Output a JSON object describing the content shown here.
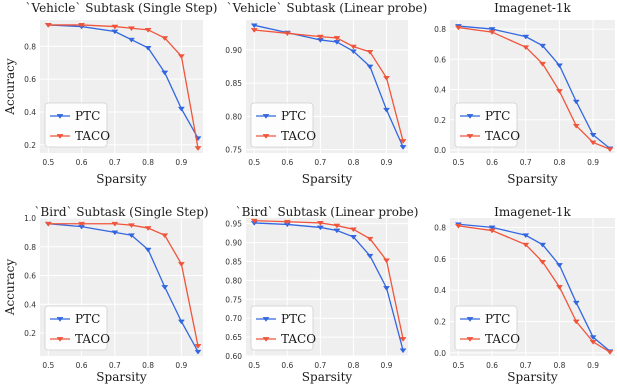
{
  "colors": {
    "PTC": "#3367e0",
    "TACO": "#f0553c",
    "panel_bg": "#efefef",
    "grid": "#ffffff"
  },
  "chart_data": [
    {
      "type": "line",
      "title": "`Vehicle` Subtask (Single Step)",
      "xlabel": "Sparsity",
      "ylabel": "Accuracy",
      "xlim": [
        0.475,
        0.965
      ],
      "ylim": [
        0.15,
        0.96
      ],
      "xticks": [
        0.5,
        0.6,
        0.7,
        0.8,
        0.9
      ],
      "yticks": [
        0.2,
        0.4,
        0.6,
        0.8
      ],
      "x": [
        0.5,
        0.6,
        0.7,
        0.75,
        0.8,
        0.85,
        0.9,
        0.95
      ],
      "series": [
        {
          "name": "PTC",
          "marker": "down-triangle",
          "values": [
            0.93,
            0.92,
            0.89,
            0.84,
            0.79,
            0.64,
            0.42,
            0.24
          ]
        },
        {
          "name": "TACO",
          "marker": "down-triangle",
          "values": [
            0.93,
            0.93,
            0.92,
            0.91,
            0.9,
            0.85,
            0.74,
            0.18
          ]
        }
      ],
      "legend": "bottom-left",
      "grid": true
    },
    {
      "type": "line",
      "title": "`Vehicle` Subtask (Linear probe)",
      "xlabel": "Sparsity",
      "ylabel": "",
      "xlim": [
        0.475,
        0.965
      ],
      "ylim": [
        0.745,
        0.945
      ],
      "xticks": [
        0.5,
        0.6,
        0.7,
        0.8,
        0.9
      ],
      "yticks": [
        0.75,
        0.8,
        0.85,
        0.9
      ],
      "x": [
        0.5,
        0.6,
        0.7,
        0.75,
        0.8,
        0.85,
        0.9,
        0.95
      ],
      "series": [
        {
          "name": "PTC",
          "marker": "down-triangle",
          "values": [
            0.937,
            0.926,
            0.915,
            0.912,
            0.898,
            0.875,
            0.81,
            0.754
          ]
        },
        {
          "name": "TACO",
          "marker": "down-triangle",
          "values": [
            0.93,
            0.925,
            0.92,
            0.918,
            0.905,
            0.897,
            0.858,
            0.763
          ]
        }
      ],
      "legend": "bottom-left",
      "grid": true
    },
    {
      "type": "line",
      "title": "Imagenet-1k",
      "xlabel": "Sparsity",
      "ylabel": "",
      "xlim": [
        0.475,
        0.965
      ],
      "ylim": [
        -0.02,
        0.86
      ],
      "xticks": [
        0.5,
        0.6,
        0.7,
        0.8,
        0.9
      ],
      "yticks": [
        0.0,
        0.2,
        0.4,
        0.6,
        0.8
      ],
      "x": [
        0.5,
        0.6,
        0.7,
        0.75,
        0.8,
        0.85,
        0.9,
        0.95
      ],
      "series": [
        {
          "name": "PTC",
          "marker": "down-triangle",
          "values": [
            0.82,
            0.8,
            0.75,
            0.69,
            0.56,
            0.32,
            0.1,
            0.01
          ]
        },
        {
          "name": "TACO",
          "marker": "down-triangle",
          "values": [
            0.81,
            0.78,
            0.68,
            0.57,
            0.39,
            0.16,
            0.05,
            0.005
          ]
        }
      ],
      "legend": "bottom-left",
      "grid": true
    },
    {
      "type": "line",
      "title": "`Bird` Subtask (Single Step)",
      "xlabel": "Sparsity",
      "ylabel": "Accuracy",
      "xlim": [
        0.475,
        0.965
      ],
      "ylim": [
        0.04,
        1.0
      ],
      "xticks": [
        0.5,
        0.6,
        0.7,
        0.8,
        0.9
      ],
      "yticks": [
        0.2,
        0.4,
        0.6,
        0.8,
        1.0
      ],
      "x": [
        0.5,
        0.6,
        0.7,
        0.75,
        0.8,
        0.85,
        0.9,
        0.95
      ],
      "series": [
        {
          "name": "PTC",
          "marker": "down-triangle",
          "values": [
            0.96,
            0.94,
            0.9,
            0.88,
            0.78,
            0.52,
            0.28,
            0.07
          ]
        },
        {
          "name": "TACO",
          "marker": "down-triangle",
          "values": [
            0.96,
            0.96,
            0.96,
            0.95,
            0.93,
            0.88,
            0.68,
            0.11
          ]
        }
      ],
      "legend": "bottom-left",
      "grid": true
    },
    {
      "type": "line",
      "title": "`Bird` Subtask (Linear probe)",
      "xlabel": "Sparsity",
      "ylabel": "",
      "xlim": [
        0.475,
        0.965
      ],
      "ylim": [
        0.6,
        0.965
      ],
      "xticks": [
        0.5,
        0.6,
        0.7,
        0.8,
        0.9
      ],
      "yticks": [
        0.6,
        0.65,
        0.7,
        0.75,
        0.8,
        0.85,
        0.9,
        0.95
      ],
      "x": [
        0.5,
        0.6,
        0.7,
        0.75,
        0.8,
        0.85,
        0.9,
        0.95
      ],
      "series": [
        {
          "name": "PTC",
          "marker": "down-triangle",
          "values": [
            0.952,
            0.948,
            0.94,
            0.932,
            0.915,
            0.865,
            0.78,
            0.615
          ]
        },
        {
          "name": "TACO",
          "marker": "down-triangle",
          "values": [
            0.958,
            0.955,
            0.952,
            0.945,
            0.935,
            0.91,
            0.853,
            0.645
          ]
        }
      ],
      "legend": "bottom-left",
      "grid": true
    },
    {
      "type": "line",
      "title": "Imagenet-1k",
      "xlabel": "Sparsity",
      "ylabel": "",
      "xlim": [
        0.475,
        0.965
      ],
      "ylim": [
        -0.02,
        0.86
      ],
      "xticks": [
        0.5,
        0.6,
        0.7,
        0.8,
        0.9
      ],
      "yticks": [
        0.0,
        0.2,
        0.4,
        0.6,
        0.8
      ],
      "x": [
        0.5,
        0.6,
        0.7,
        0.75,
        0.8,
        0.85,
        0.9,
        0.95
      ],
      "series": [
        {
          "name": "PTC",
          "marker": "down-triangle",
          "values": [
            0.82,
            0.8,
            0.75,
            0.69,
            0.56,
            0.32,
            0.1,
            0.01
          ]
        },
        {
          "name": "TACO",
          "marker": "down-triangle",
          "values": [
            0.81,
            0.78,
            0.69,
            0.58,
            0.42,
            0.2,
            0.07,
            0.005
          ]
        }
      ],
      "legend": "bottom-left",
      "grid": true
    }
  ]
}
